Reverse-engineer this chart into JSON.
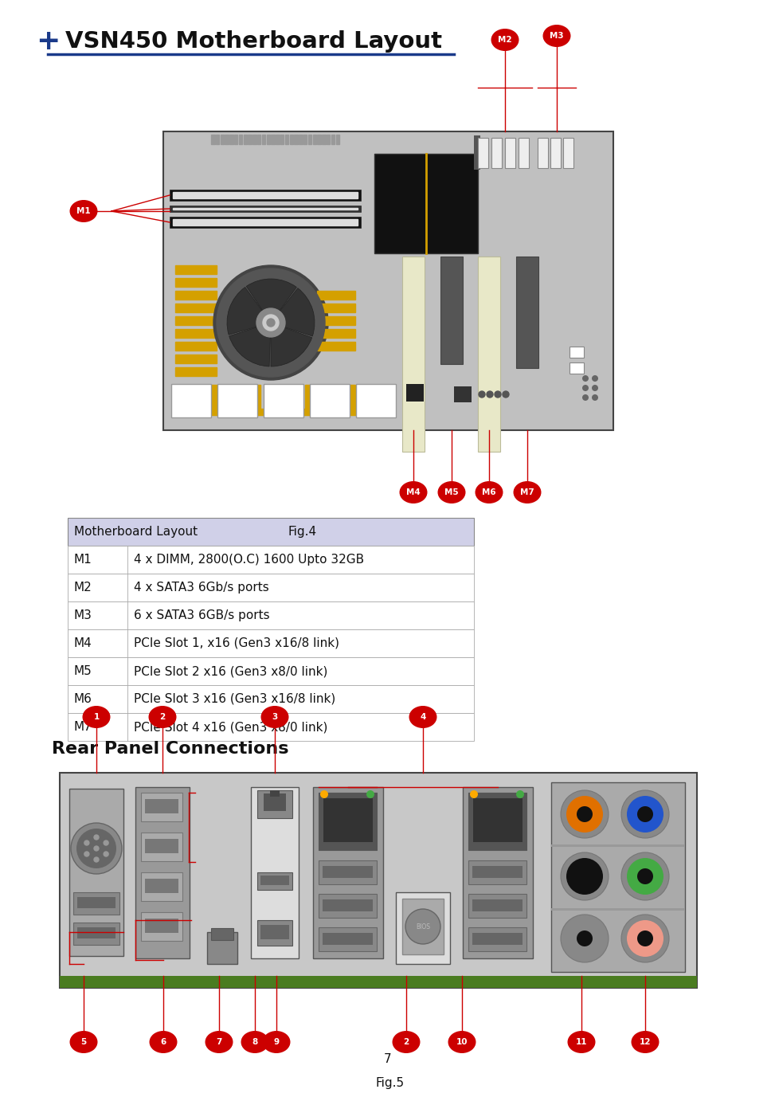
{
  "title": "VSN450 Motherboard Layout",
  "title_plus_color": "#1a3a8a",
  "title_line_color": "#1a3a8a",
  "bg_color": "#ffffff",
  "table_header_bg": "#d0d0e8",
  "table_header_text": "Motherboard Layout",
  "table_rows": [
    [
      "M1",
      "4 x DIMM, 2800(O.C) 1600 Upto 32GB"
    ],
    [
      "M2",
      "4 x SATA3 6Gb/s ports"
    ],
    [
      "M3",
      "6 x SATA3 6GB/s ports"
    ],
    [
      "M4",
      "PCIe Slot 1, x16 (Gen3 x16/8 link)"
    ],
    [
      "M5",
      "PCIe Slot 2 x16 (Gen3 x8/0 link)"
    ],
    [
      "M6",
      "PCIe Slot 3 x16 (Gen3 x16/8 link)"
    ],
    [
      "M7",
      "PCIe Slot 4 x16 (Gen3 x8/0 link)"
    ]
  ],
  "label_color": "#cc0000",
  "label_text_color": "#ffffff",
  "rear_panel_title": "Rear Panel Connections",
  "fig4_caption": "Fig.4",
  "fig5_caption": "Fig.5",
  "page_number": "7"
}
